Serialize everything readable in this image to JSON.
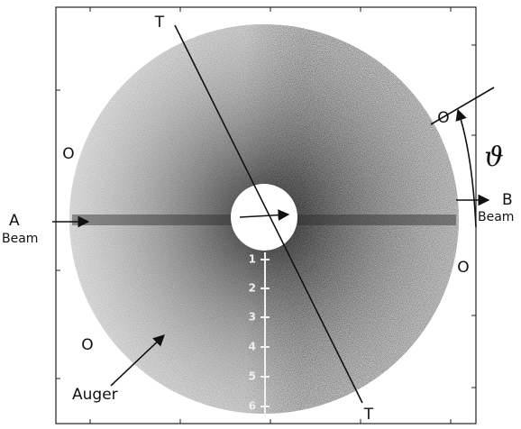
{
  "labels": {
    "axis_ends": [
      "T",
      "T"
    ],
    "o_marks": [
      "O",
      "O",
      "O",
      "O"
    ],
    "beam_a": {
      "letter": "A",
      "text": "Beam"
    },
    "beam_b": {
      "letter": "B",
      "text": "Beam"
    },
    "angle": "ϑ",
    "auger": "Auger"
  },
  "scale": {
    "ticks": [
      "1",
      "2",
      "3",
      "4",
      "5",
      "6"
    ]
  }
}
